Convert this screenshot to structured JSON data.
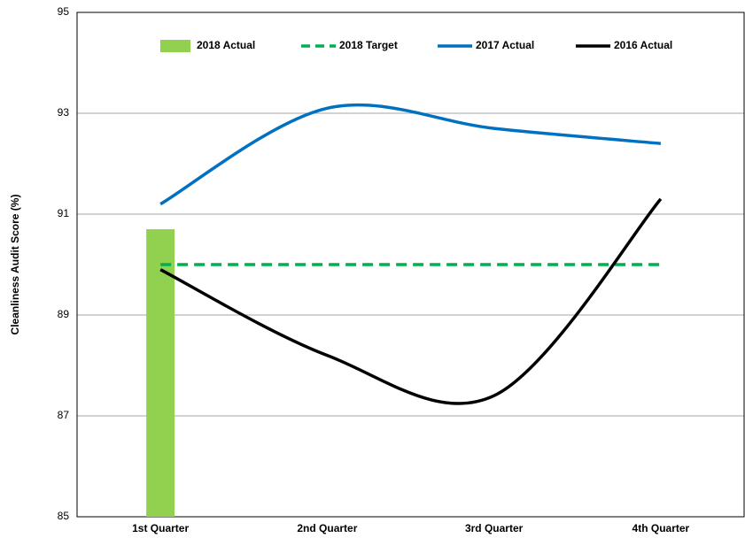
{
  "chart_data": {
    "type": "line",
    "y_label": "Cleanliness Audit Score (%)",
    "categories": [
      "1st Quarter",
      "2nd Quarter",
      "3rd Quarter",
      "4th Quarter"
    ],
    "series": [
      {
        "name": "2018 Actual",
        "color": "#92d050",
        "mark": "bar",
        "values": [
          90.7,
          null,
          null,
          null
        ]
      },
      {
        "name": "2018 Target",
        "color": "#00b050",
        "mark": "line",
        "dash": true,
        "values": [
          90,
          90,
          90,
          90
        ]
      },
      {
        "name": "2017 Actual",
        "color": "#0070c0",
        "mark": "line",
        "smooth": true,
        "values": [
          91.2,
          93.1,
          92.7,
          92.4
        ]
      },
      {
        "name": "2016 Actual",
        "color": "#000000",
        "mark": "line",
        "smooth": true,
        "values": [
          89.9,
          88.2,
          87.4,
          91.3
        ]
      }
    ],
    "ylim": [
      85,
      95
    ],
    "yticks": [
      85,
      87,
      89,
      91,
      93,
      95
    ],
    "grid": true,
    "legend": "top"
  }
}
